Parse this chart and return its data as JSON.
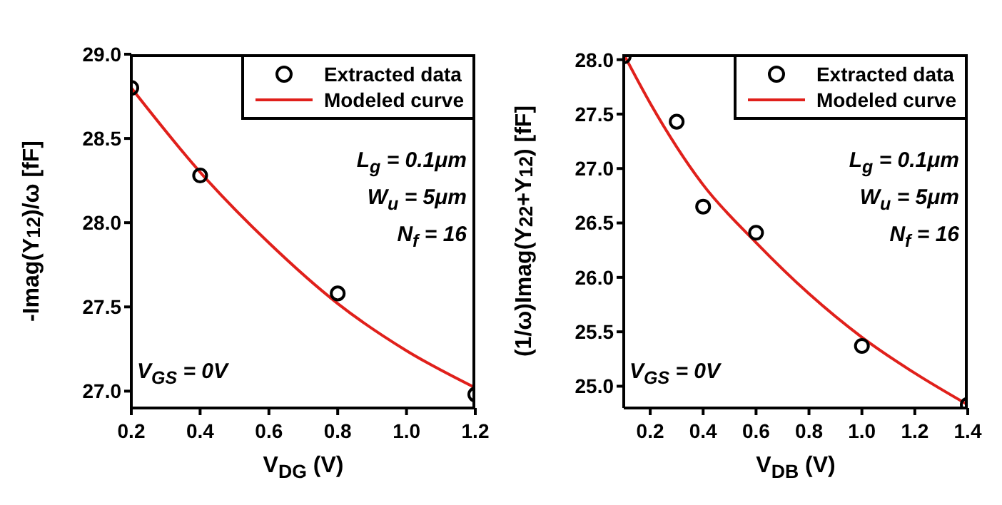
{
  "chart_data": [
    {
      "type": "scatter",
      "xlabel": "V$_{DG}$ (V)",
      "ylabel": "-Imag(Y$_{12}$)/ω  [fF]",
      "xlim": [
        0.2,
        1.2
      ],
      "xticks": [
        0.2,
        0.4,
        0.6,
        0.8,
        {
          "value": 1,
          "label": "1.0"
        },
        1.2
      ],
      "ylim": [
        26.9,
        29.0
      ],
      "yticks": [
        {
          "value": 27,
          "label": "27.0"
        },
        27.5,
        {
          "value": 28,
          "label": "28.0"
        },
        28.5,
        {
          "value": 29,
          "label": "29.0"
        }
      ],
      "grid": false,
      "legend": "top right",
      "marker": "circle",
      "annotations": [
        "L$_{g}$ = 0.1μm",
        "W$_{u}$ = 5μm",
        "N$_{f}$ = 16",
        "V$_{GS}$ = 0V"
      ],
      "series": [
        {
          "name": "Extracted data",
          "type": "scatter",
          "color": "#000000",
          "x": [
            0.2,
            0.4,
            0.8,
            1.2
          ],
          "values": [
            28.8,
            28.28,
            27.58,
            26.98
          ]
        },
        {
          "name": "Modeled curve",
          "type": "line",
          "marker": "none",
          "color": "#e0201b",
          "x": [
            0.2,
            0.4,
            0.6,
            0.8,
            1.0,
            1.2
          ],
          "values": [
            28.8,
            28.3,
            27.88,
            27.52,
            27.24,
            27.02
          ]
        }
      ]
    },
    {
      "type": "scatter",
      "xlabel": "V$_{DB}$ (V)",
      "ylabel": "(1/ω)Imag(Y$_{22}$+Y$_{12}$)  [fF]",
      "xlim": [
        0.1,
        1.4
      ],
      "xticks": [
        0.2,
        0.4,
        0.6,
        0.8,
        {
          "value": 1,
          "label": "1.0"
        },
        1.2,
        1.4
      ],
      "ylim": [
        24.8,
        28.05
      ],
      "yticks": [
        {
          "value": 25,
          "label": "25.0"
        },
        25.5,
        {
          "value": 26,
          "label": "26.0"
        },
        26.5,
        {
          "value": 27,
          "label": "27.0"
        },
        27.5,
        {
          "value": 28,
          "label": "28.0"
        }
      ],
      "grid": false,
      "legend": "top right",
      "marker": "circle",
      "annotations": [
        "L$_{g}$ = 0.1μm",
        "W$_{u}$ = 5μm",
        "N$_{f}$ = 16",
        "V$_{GS}$ = 0V"
      ],
      "series": [
        {
          "name": "Extracted data",
          "type": "scatter",
          "color": "#000000",
          "x": [
            0.1,
            0.3,
            0.4,
            0.6,
            1.0,
            1.4
          ],
          "values": [
            28.03,
            27.43,
            26.65,
            26.41,
            25.37,
            24.83
          ]
        },
        {
          "name": "Modeled curve",
          "type": "line",
          "marker": "none",
          "color": "#e0201b",
          "x": [
            0.1,
            0.2,
            0.4,
            0.6,
            0.8,
            1.0,
            1.2,
            1.4
          ],
          "values": [
            28.05,
            27.6,
            26.85,
            26.32,
            25.85,
            25.45,
            25.12,
            24.83
          ]
        }
      ]
    }
  ]
}
